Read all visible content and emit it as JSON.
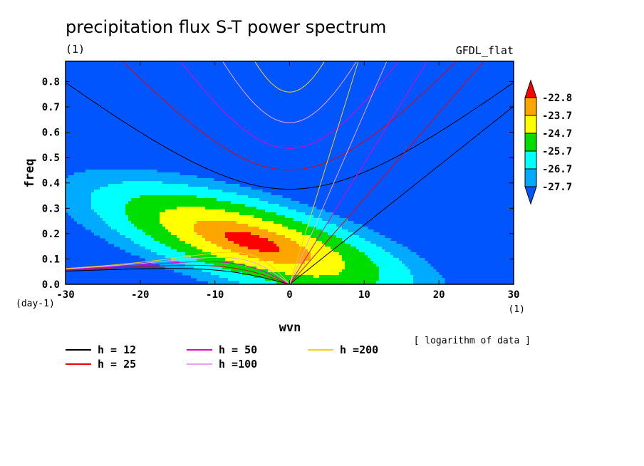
{
  "chart_data": {
    "type": "contour",
    "title": "precipitation flux S-T power spectrum",
    "subtitle_left": "(1)",
    "subtitle_right": "GFDL_flat",
    "xlabel": "wvn",
    "ylabel": "freq",
    "x_unit": "(1)",
    "y_unit": "(day-1)",
    "note": "[ logarithm of data ]",
    "xlim": [
      -30,
      30
    ],
    "ylim": [
      0.0,
      0.88
    ],
    "xticks": [
      "-30",
      "-20",
      "-10",
      "0",
      "10",
      "20",
      "30"
    ],
    "yticks": [
      "0.0",
      "0.1",
      "0.2",
      "0.3",
      "0.4",
      "0.5",
      "0.6",
      "0.7",
      "0.8"
    ],
    "colorbar": {
      "levels": [
        "-22.8",
        "-23.7",
        "-24.7",
        "-25.7",
        "-26.7",
        "-27.7"
      ],
      "colors": [
        "#ff0000",
        "#ffa500",
        "#ffff00",
        "#00dd00",
        "#00ffff",
        "#00aaff",
        "#0055ff"
      ]
    },
    "dispersion_curves": [
      {
        "name": "h = 12",
        "h": 12,
        "color": "#000000"
      },
      {
        "name": "h = 25",
        "h": 25,
        "color": "#ee0000"
      },
      {
        "name": "h = 50",
        "h": 50,
        "color": "#e600c8"
      },
      {
        "name": "h =100",
        "h": 100,
        "color": "#f0a0f0"
      },
      {
        "name": "h =200",
        "h": 200,
        "color": "#ffd000"
      }
    ]
  }
}
